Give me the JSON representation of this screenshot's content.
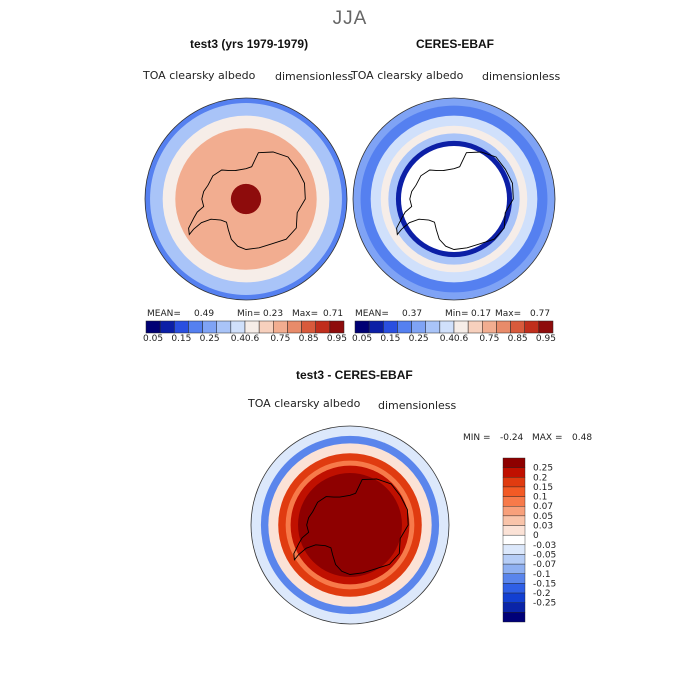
{
  "page_title": "JJA",
  "colors": {
    "abs_scale": [
      "#000074",
      "#0c1fa6",
      "#2a4fe0",
      "#5580f0",
      "#7fa3f5",
      "#a9c4f8",
      "#d0e0fb",
      "#f6ede8",
      "#f7d0bd",
      "#f2ad90",
      "#e88b6a",
      "#d85a3c",
      "#c02e1c",
      "#8e0c0c"
    ],
    "diff_scale": [
      "#8e0000",
      "#c01000",
      "#e03b10",
      "#f35a25",
      "#f77a4a",
      "#f8a07b",
      "#f9c4aa",
      "#fbe2d6",
      "#ffffff",
      "#dce8fb",
      "#b6cdf6",
      "#8fb0f1",
      "#5a85ec",
      "#2f5fe6",
      "#123fd2",
      "#0a24a8",
      "#000078"
    ],
    "land_line": "#000000"
  },
  "chart_data": [
    {
      "type": "heatmap",
      "name": "test3",
      "title": "test3 (yrs 1979-1979)",
      "variable": "TOA clearsky albedo",
      "units": "dimensionless",
      "projection": "south-polar-stereographic",
      "stats": {
        "mean_label": "MEAN=",
        "mean": "0.49",
        "min_label": "Min=",
        "min": "0.23",
        "max_label": "Max=",
        "max": "0.71"
      },
      "levels": [
        "0.05",
        "0.15",
        "0.25",
        "0.4",
        "0.6",
        "0.75",
        "0.85",
        "0.95"
      ],
      "field_rings": [
        {
          "from_lat": -90,
          "to_lat": -84,
          "value": 0.95
        },
        {
          "from_lat": -84,
          "to_lat": -62,
          "value": 0.65
        },
        {
          "from_lat": -62,
          "to_lat": -57,
          "value": 0.45
        },
        {
          "from_lat": -57,
          "to_lat": -52,
          "value": 0.3
        },
        {
          "from_lat": -52,
          "to_lat": -50,
          "value": 0.2
        }
      ]
    },
    {
      "type": "heatmap",
      "name": "CERES-EBAF",
      "title": "CERES-EBAF",
      "variable": "TOA clearsky albedo",
      "units": "dimensionless",
      "projection": "south-polar-stereographic",
      "stats": {
        "mean_label": "MEAN=",
        "mean": "0.37",
        "min_label": "Min=",
        "min": "0.17",
        "max_label": "Max=",
        "max": "0.77"
      },
      "levels": [
        "0.05",
        "0.15",
        "0.25",
        "0.4",
        "0.6",
        "0.75",
        "0.85",
        "0.95"
      ],
      "field_rings": [
        {
          "from_lat": -90,
          "to_lat": -69,
          "value": null
        },
        {
          "from_lat": -69,
          "to_lat": -67,
          "value": 0.1
        },
        {
          "from_lat": -67,
          "to_lat": -64,
          "value": 0.3
        },
        {
          "from_lat": -64,
          "to_lat": -61,
          "value": 0.5
        },
        {
          "from_lat": -61,
          "to_lat": -57,
          "value": 0.35
        },
        {
          "from_lat": -57,
          "to_lat": -53,
          "value": 0.2
        },
        {
          "from_lat": -53,
          "to_lat": -50,
          "value": 0.25
        }
      ]
    },
    {
      "type": "heatmap",
      "name": "test3 - CERES-EBAF",
      "title": "test3 - CERES-EBAF",
      "variable": "TOA clearsky albedo",
      "units": "dimensionless",
      "projection": "south-polar-stereographic",
      "stats": {
        "min_label": "MIN =",
        "min": "-0.24",
        "max_label": "MAX =",
        "max": "0.48"
      },
      "levels": [
        "0.25",
        "0.2",
        "0.15",
        "0.1",
        "0.07",
        "0.05",
        "0.03",
        "0",
        "-0.03",
        "-0.05",
        "-0.07",
        "-0.1",
        "-0.15",
        "-0.2",
        "-0.25"
      ],
      "field_rings": [
        {
          "from_lat": -90,
          "to_lat": -69,
          "value": 0.4
        },
        {
          "from_lat": -69,
          "to_lat": -66,
          "value": 0.2
        },
        {
          "from_lat": -66,
          "to_lat": -64,
          "value": 0.08
        },
        {
          "from_lat": -64,
          "to_lat": -61,
          "value": 0.15
        },
        {
          "from_lat": -61,
          "to_lat": -57,
          "value": 0.02
        },
        {
          "from_lat": -57,
          "to_lat": -54,
          "value": -0.08
        },
        {
          "from_lat": -54,
          "to_lat": -50,
          "value": -0.02
        }
      ]
    }
  ]
}
